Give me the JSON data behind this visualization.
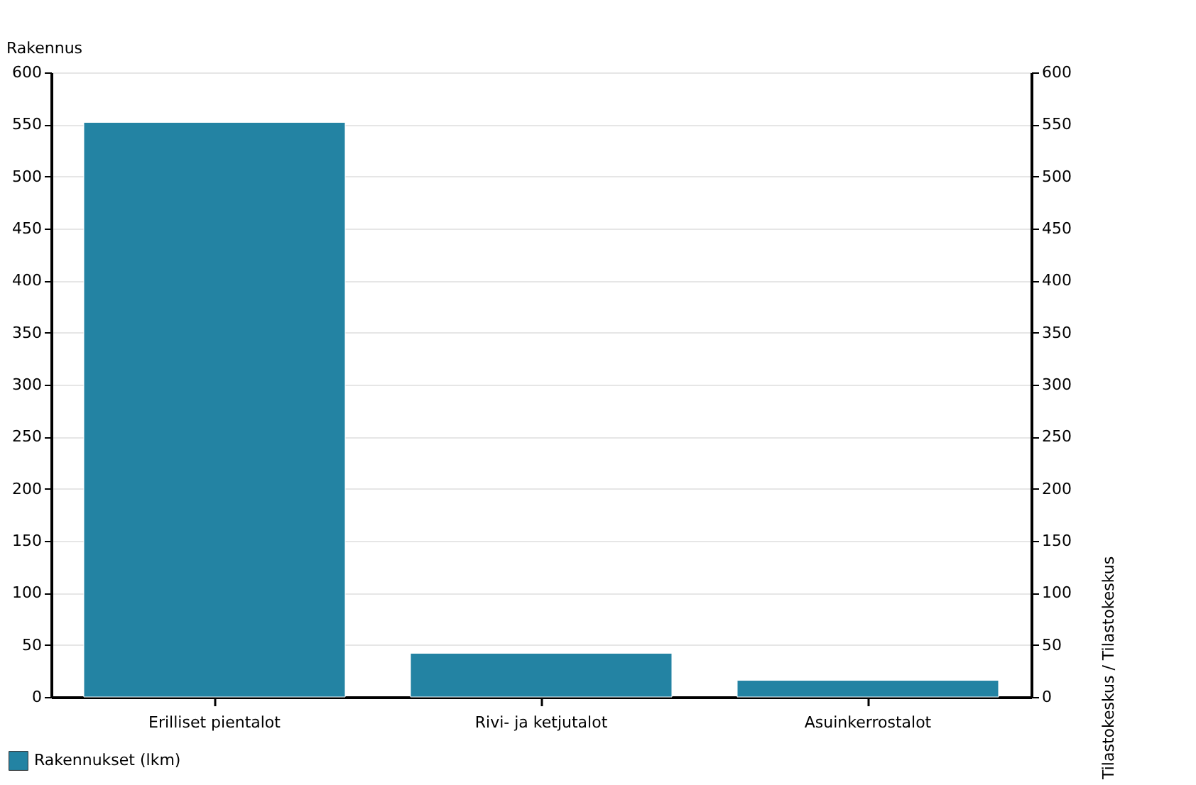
{
  "chart_data": {
    "type": "bar",
    "ylabel": "Rakennus",
    "categories": [
      "Erilliset pientalot",
      "Rivi- ja ketjutalot",
      "Asuinkerrostalot"
    ],
    "series": [
      {
        "name": "Rakennukset (lkm)",
        "color": "#2383a3",
        "values": [
          552,
          42,
          16
        ]
      }
    ],
    "ylim": [
      0,
      600
    ],
    "yticks": [
      0,
      50,
      100,
      150,
      200,
      250,
      300,
      350,
      400,
      450,
      500,
      550,
      600
    ],
    "y2lim": [
      0,
      600
    ],
    "y2ticks": [
      0,
      50,
      100,
      150,
      200,
      250,
      300,
      350,
      400,
      450,
      500,
      550,
      600
    ],
    "grid": "y",
    "legend": "bottom left",
    "annotations": [
      "Tilastokeskus / Tilastokeskus"
    ]
  }
}
